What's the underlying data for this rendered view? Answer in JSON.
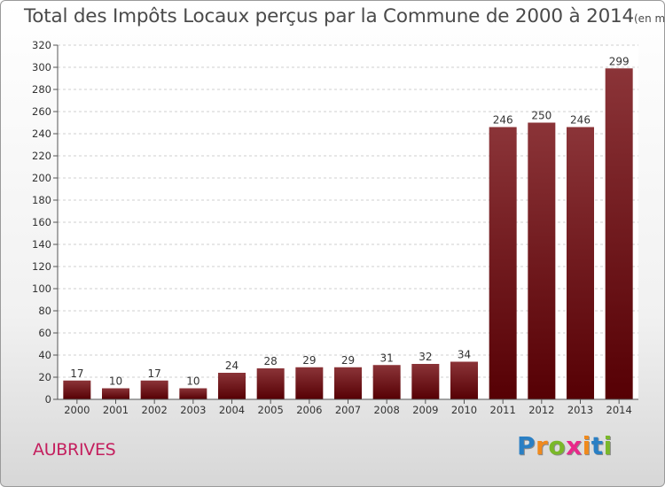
{
  "chart_data": {
    "type": "bar",
    "title": "Total des Impôts Locaux perçus par la Commune de 2000 à 2014",
    "subtitle": "(en milliers d'€)",
    "categories": [
      "2000",
      "2001",
      "2002",
      "2003",
      "2004",
      "2005",
      "2006",
      "2007",
      "2008",
      "2009",
      "2010",
      "2011",
      "2012",
      "2013",
      "2014"
    ],
    "values": [
      17,
      10,
      17,
      10,
      24,
      28,
      29,
      29,
      31,
      32,
      34,
      246,
      250,
      246,
      299
    ],
    "ylim": [
      0,
      320
    ],
    "yticks": [
      0,
      20,
      40,
      60,
      80,
      100,
      120,
      140,
      160,
      180,
      200,
      220,
      240,
      260,
      280,
      300,
      320
    ],
    "xlabel": "",
    "ylabel": "",
    "grid": true,
    "bar_color_top": "#8b3438",
    "bar_color_bottom": "#560004"
  },
  "commune": "AUBRIVES",
  "brand": {
    "letters": [
      "P",
      "r",
      "o",
      "x",
      "i",
      "t",
      "i"
    ],
    "colors": [
      "#2a7fc4",
      "#f08a1d",
      "#7ab829",
      "#e8298a",
      "#f08a1d",
      "#2a7fc4",
      "#7ab829"
    ]
  }
}
